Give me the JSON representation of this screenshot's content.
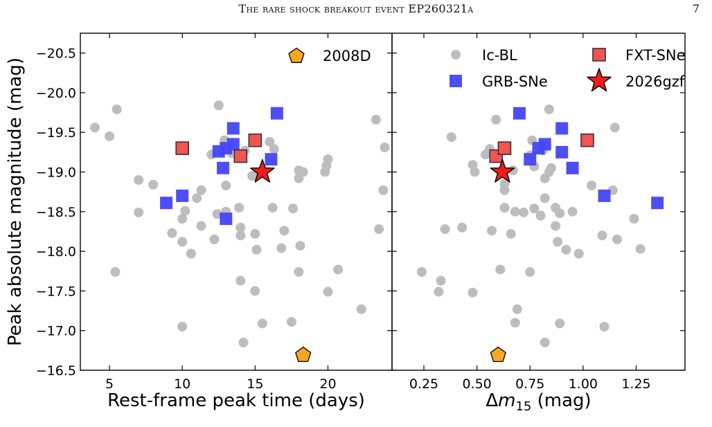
{
  "header": {
    "title": "The rare shock breakout event EP260321a",
    "page_number": "7"
  },
  "chart_data": [
    {
      "type": "scatter",
      "panel": "left",
      "xlabel": "Rest-frame peak time (days)",
      "ylabel": "Peak absolute magnitude (mag)",
      "xlim": [
        3,
        24.4
      ],
      "ylim": [
        -16.5,
        -20.75
      ],
      "y_inverted": true,
      "xticks": [
        "5",
        "10",
        "15",
        "20"
      ],
      "xtick_values": [
        5,
        10,
        15,
        20
      ],
      "yticks": [
        "−16.5",
        "−17.0",
        "−17.5",
        "−18.0",
        "−18.5",
        "−19.0",
        "−19.5",
        "−20.0",
        "−20.5"
      ],
      "ytick_values": [
        -16.5,
        -17.0,
        -17.5,
        -18.0,
        -18.5,
        -19.0,
        -19.5,
        -20.0,
        -20.5
      ],
      "legend": {
        "location": "top-right",
        "entries": [
          {
            "label": "2008D",
            "series": "2008D"
          }
        ]
      },
      "series": [
        {
          "name": "Ic-BL",
          "marker": "circle",
          "color": "#bdbdbd",
          "points": [
            [
              4.0,
              -19.56
            ],
            [
              5.0,
              -19.45
            ],
            [
              5.5,
              -19.79
            ],
            [
              5.4,
              -17.74
            ],
            [
              7.0,
              -18.9
            ],
            [
              7.0,
              -18.49
            ],
            [
              8.0,
              -18.84
            ],
            [
              9.3,
              -18.23
            ],
            [
              10.0,
              -18.12
            ],
            [
              10.0,
              -18.41
            ],
            [
              10.2,
              -18.51
            ],
            [
              10.6,
              -17.97
            ],
            [
              11.0,
              -18.67
            ],
            [
              11.3,
              -18.77
            ],
            [
              11.3,
              -18.32
            ],
            [
              12.0,
              -19.22
            ],
            [
              12.2,
              -18.15
            ],
            [
              12.5,
              -19.84
            ],
            [
              12.4,
              -18.47
            ],
            [
              12.9,
              -19.4
            ],
            [
              13.0,
              -18.83
            ],
            [
              13.0,
              -18.5
            ],
            [
              13.4,
              -19.24
            ],
            [
              13.9,
              -18.55
            ],
            [
              14.0,
              -18.3
            ],
            [
              14.0,
              -18.2
            ],
            [
              14.0,
              -17.63
            ],
            [
              14.3,
              -19.27
            ],
            [
              14.8,
              -18.95
            ],
            [
              15.0,
              -18.22
            ],
            [
              15.1,
              -18.02
            ],
            [
              15.0,
              -17.5
            ],
            [
              15.5,
              -17.09
            ],
            [
              16.0,
              -19.38
            ],
            [
              16.3,
              -19.29
            ],
            [
              16.2,
              -18.55
            ],
            [
              16.8,
              -18.04
            ],
            [
              17.0,
              -18.26
            ],
            [
              17.5,
              -17.11
            ],
            [
              17.6,
              -18.54
            ],
            [
              18.0,
              -18.92
            ],
            [
              18.0,
              -19.02
            ],
            [
              18.1,
              -18.07
            ],
            [
              18.0,
              -17.74
            ],
            [
              18.3,
              -19.0
            ],
            [
              14.2,
              -16.85
            ],
            [
              19.8,
              -19.0
            ],
            [
              19.9,
              -19.08
            ],
            [
              20.0,
              -19.16
            ],
            [
              20.0,
              -17.49
            ],
            [
              20.7,
              -17.77
            ],
            [
              22.3,
              -17.27
            ],
            [
              23.3,
              -19.66
            ],
            [
              23.5,
              -18.28
            ],
            [
              23.8,
              -18.77
            ],
            [
              23.9,
              -19.31
            ],
            [
              10.0,
              -17.05
            ]
          ]
        },
        {
          "name": "GRB-SNe",
          "marker": "square",
          "color": "#4545f5",
          "points": [
            [
              8.9,
              -18.61
            ],
            [
              10.0,
              -18.7
            ],
            [
              12.5,
              -19.26
            ],
            [
              12.8,
              -19.05
            ],
            [
              13.0,
              -19.3
            ],
            [
              13.0,
              -18.41
            ],
            [
              13.5,
              -19.55
            ],
            [
              13.5,
              -19.35
            ],
            [
              16.1,
              -19.16
            ],
            [
              16.5,
              -19.74
            ]
          ]
        },
        {
          "name": "FXT-SNe",
          "marker": "square-edged",
          "color": "#f25454",
          "points": [
            [
              10.0,
              -19.3
            ],
            [
              14.0,
              -19.2
            ],
            [
              15.0,
              -19.4
            ]
          ]
        },
        {
          "name": "2026gzf",
          "marker": "star",
          "color": "#ee1c1c",
          "points": [
            [
              15.5,
              -19.0
            ]
          ]
        },
        {
          "name": "2008D",
          "marker": "pentagon",
          "color": "#f5a623",
          "points": [
            [
              18.3,
              -16.7
            ]
          ]
        }
      ]
    },
    {
      "type": "scatter",
      "panel": "right",
      "xlabel": "Δm15 (mag)",
      "xlabel_parts": {
        "delta": "Δ",
        "var": "m",
        "sub": "15",
        "unit": " (mag)"
      },
      "xlim": [
        0.1,
        1.48
      ],
      "ylim": [
        -16.5,
        -20.75
      ],
      "y_inverted": true,
      "xticks": [
        "0.25",
        "0.50",
        "0.75",
        "1.00",
        "1.25"
      ],
      "xtick_values": [
        0.25,
        0.5,
        0.75,
        1.0,
        1.25
      ],
      "legend": {
        "location": "top-right",
        "entries": [
          {
            "label": "Ic-BL",
            "series": "Ic-BL"
          },
          {
            "label": "FXT-SNe",
            "series": "FXT-SNe"
          },
          {
            "label": "GRB-SNe",
            "series": "GRB-SNe"
          },
          {
            "label": "2026gzf",
            "series": "2026gzf"
          }
        ]
      },
      "series": [
        {
          "name": "Ic-BL",
          "marker": "circle",
          "color": "#bdbdbd",
          "points": [
            [
              0.24,
              -17.74
            ],
            [
              0.32,
              -17.49
            ],
            [
              0.33,
              -17.63
            ],
            [
              0.35,
              -18.28
            ],
            [
              0.43,
              -18.3
            ],
            [
              0.38,
              -19.44
            ],
            [
              0.48,
              -19.09
            ],
            [
              0.49,
              -19.0
            ],
            [
              0.48,
              -17.48
            ],
            [
              0.54,
              -19.22
            ],
            [
              0.56,
              -19.29
            ],
            [
              0.57,
              -18.26
            ],
            [
              0.59,
              -19.66
            ],
            [
              0.61,
              -17.77
            ],
            [
              0.63,
              -18.55
            ],
            [
              0.63,
              -18.77
            ],
            [
              0.63,
              -18.85
            ],
            [
              0.66,
              -18.22
            ],
            [
              0.67,
              -19.02
            ],
            [
              0.68,
              -17.1
            ],
            [
              0.68,
              -18.5
            ],
            [
              0.69,
              -17.27
            ],
            [
              0.72,
              -18.49
            ],
            [
              0.75,
              -17.74
            ],
            [
              0.75,
              -19.21
            ],
            [
              0.77,
              -19.07
            ],
            [
              0.77,
              -18.54
            ],
            [
              0.8,
              -18.45
            ],
            [
              0.81,
              -19.27
            ],
            [
              0.82,
              -18.92
            ],
            [
              0.82,
              -16.85
            ],
            [
              0.82,
              -18.67
            ],
            [
              0.84,
              -19.79
            ],
            [
              0.84,
              -19.0
            ],
            [
              0.85,
              -19.05
            ],
            [
              0.87,
              -18.32
            ],
            [
              0.87,
              -18.55
            ],
            [
              0.88,
              -18.12
            ],
            [
              0.89,
              -18.48
            ],
            [
              0.89,
              -17.09
            ],
            [
              0.92,
              -18.02
            ],
            [
              0.95,
              -18.5
            ],
            [
              0.98,
              -17.97
            ],
            [
              1.02,
              -19.41
            ],
            [
              1.04,
              -18.83
            ],
            [
              1.09,
              -18.2
            ],
            [
              1.1,
              -17.05
            ],
            [
              1.14,
              -18.77
            ],
            [
              1.15,
              -19.56
            ],
            [
              1.16,
              -18.15
            ],
            [
              1.24,
              -18.41
            ],
            [
              1.27,
              -18.03
            ],
            [
              0.76,
              -19.4
            ]
          ]
        },
        {
          "name": "GRB-SNe",
          "marker": "square",
          "color": "#4545f5",
          "points": [
            [
              0.7,
              -19.74
            ],
            [
              0.75,
              -19.16
            ],
            [
              0.79,
              -19.3
            ],
            [
              0.82,
              -19.35
            ],
            [
              0.9,
              -19.25
            ],
            [
              0.9,
              -19.55
            ],
            [
              0.95,
              -19.05
            ],
            [
              1.02,
              -19.4
            ],
            [
              1.1,
              -18.7
            ],
            [
              1.35,
              -18.61
            ]
          ]
        },
        {
          "name": "FXT-SNe",
          "marker": "square-edged",
          "color": "#f25454",
          "points": [
            [
              0.59,
              -19.2
            ],
            [
              0.63,
              -19.3
            ],
            [
              1.02,
              -19.4
            ]
          ]
        },
        {
          "name": "2026gzf",
          "marker": "star",
          "color": "#ee1c1c",
          "points": [
            [
              0.62,
              -19.0
            ]
          ]
        },
        {
          "name": "2008D",
          "marker": "pentagon",
          "color": "#f5a623",
          "points": [
            [
              0.6,
              -16.7
            ]
          ]
        }
      ]
    }
  ]
}
